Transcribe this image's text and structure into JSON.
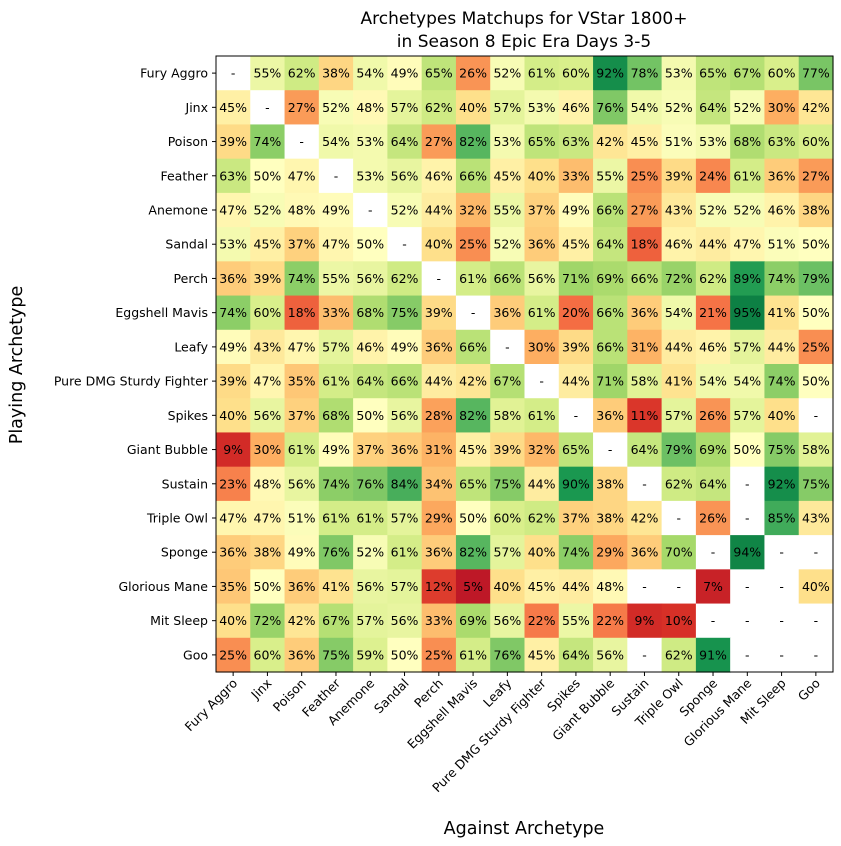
{
  "chart_data": {
    "type": "heatmap",
    "title_lines": [
      "Archetypes Matchups for VStar 1800+",
      "in Season 8 Epic Era Days 3-5"
    ],
    "xlabel": "Against Archetype",
    "ylabel": "Playing Archetype",
    "rows": [
      "Fury Aggro",
      "Jinx",
      "Poison",
      "Feather",
      "Anemone",
      "Sandal",
      "Perch",
      "Eggshell Mavis",
      "Leafy",
      "Pure DMG Sturdy Fighter",
      "Spikes",
      "Giant Bubble",
      "Sustain",
      "Triple Owl",
      "Sponge",
      "Glorious Mane",
      "Mit Sleep",
      "Goo"
    ],
    "columns": [
      "Fury Aggro",
      "Jinx",
      "Poison",
      "Feather",
      "Anemone",
      "Sandal",
      "Perch",
      "Eggshell Mavis",
      "Leafy",
      "Pure DMG Sturdy Fighter",
      "Spikes",
      "Giant Bubble",
      "Sustain",
      "Triple Owl",
      "Sponge",
      "Glorious Mane",
      "Mit Sleep",
      "Goo"
    ],
    "value_range": [
      0,
      100
    ],
    "colormap": "RdYlGn",
    "values": [
      [
        null,
        55,
        62,
        38,
        54,
        49,
        65,
        26,
        52,
        61,
        60,
        92,
        78,
        53,
        65,
        67,
        60,
        77
      ],
      [
        45,
        null,
        27,
        52,
        48,
        57,
        62,
        40,
        57,
        53,
        46,
        76,
        54,
        52,
        64,
        52,
        30,
        42
      ],
      [
        39,
        74,
        null,
        54,
        53,
        64,
        27,
        82,
        53,
        65,
        63,
        42,
        45,
        51,
        53,
        68,
        63,
        60
      ],
      [
        63,
        50,
        47,
        null,
        53,
        56,
        46,
        66,
        45,
        40,
        33,
        55,
        25,
        39,
        24,
        61,
        36,
        27
      ],
      [
        47,
        52,
        48,
        49,
        null,
        52,
        44,
        32,
        55,
        37,
        49,
        66,
        27,
        43,
        52,
        52,
        46,
        38
      ],
      [
        53,
        45,
        37,
        47,
        50,
        null,
        40,
        25,
        52,
        36,
        45,
        64,
        18,
        46,
        44,
        47,
        51,
        50
      ],
      [
        36,
        39,
        74,
        55,
        56,
        62,
        null,
        61,
        66,
        56,
        71,
        69,
        66,
        72,
        62,
        89,
        74,
        79
      ],
      [
        74,
        60,
        18,
        33,
        68,
        75,
        39,
        null,
        36,
        61,
        20,
        66,
        36,
        54,
        21,
        95,
        41,
        50
      ],
      [
        49,
        43,
        47,
        57,
        46,
        49,
        36,
        66,
        null,
        30,
        39,
        66,
        31,
        44,
        46,
        57,
        44,
        25
      ],
      [
        39,
        47,
        35,
        61,
        64,
        66,
        44,
        42,
        67,
        null,
        44,
        71,
        58,
        41,
        54,
        54,
        74,
        50
      ],
      [
        40,
        56,
        37,
        68,
        50,
        56,
        28,
        82,
        58,
        61,
        null,
        36,
        11,
        57,
        26,
        57,
        40,
        null
      ],
      [
        9,
        30,
        61,
        49,
        37,
        36,
        31,
        45,
        39,
        32,
        65,
        null,
        64,
        79,
        69,
        50,
        75,
        58
      ],
      [
        23,
        48,
        56,
        74,
        76,
        84,
        34,
        65,
        75,
        44,
        90,
        38,
        null,
        62,
        64,
        null,
        92,
        75
      ],
      [
        47,
        47,
        51,
        61,
        61,
        57,
        29,
        50,
        60,
        62,
        37,
        38,
        42,
        null,
        26,
        null,
        85,
        43
      ],
      [
        36,
        38,
        49,
        76,
        52,
        61,
        36,
        82,
        57,
        40,
        74,
        29,
        36,
        70,
        null,
        94,
        null,
        null
      ],
      [
        35,
        50,
        36,
        41,
        56,
        57,
        12,
        5,
        40,
        45,
        44,
        48,
        null,
        null,
        7,
        null,
        null,
        40
      ],
      [
        40,
        72,
        42,
        67,
        57,
        56,
        33,
        69,
        56,
        22,
        55,
        22,
        9,
        10,
        null,
        null,
        null,
        null
      ],
      [
        25,
        60,
        36,
        75,
        59,
        50,
        25,
        61,
        76,
        45,
        64,
        56,
        null,
        62,
        91,
        null,
        null,
        null
      ]
    ],
    "missing_label": "-",
    "value_suffix": "%"
  }
}
